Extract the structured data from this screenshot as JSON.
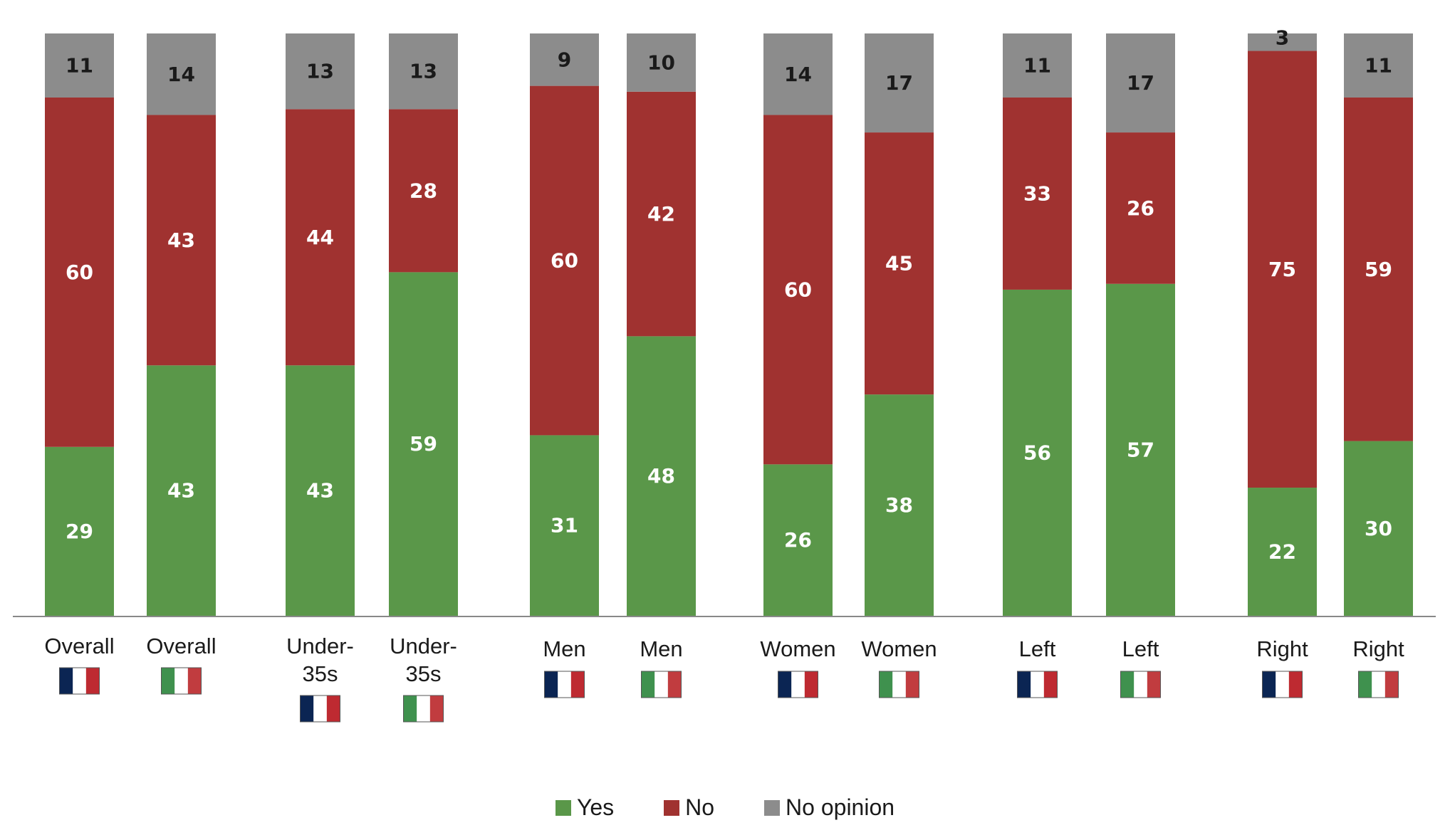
{
  "chart_data": {
    "type": "bar",
    "stacked": true,
    "categories": [
      "Overall",
      "Overall",
      "Under-35s",
      "Under-35s",
      "Men",
      "Men",
      "Women",
      "Women",
      "Left",
      "Left",
      "Right",
      "Right"
    ],
    "countries": [
      "France",
      "Italy",
      "France",
      "Italy",
      "France",
      "Italy",
      "France",
      "Italy",
      "France",
      "Italy",
      "France",
      "Italy"
    ],
    "series": [
      {
        "name": "Yes",
        "color": "#5a9749",
        "values": [
          29,
          43,
          43,
          59,
          31,
          48,
          26,
          38,
          56,
          57,
          22,
          30
        ]
      },
      {
        "name": "No",
        "color": "#a03230",
        "values": [
          60,
          43,
          44,
          28,
          60,
          42,
          60,
          45,
          33,
          26,
          75,
          59
        ]
      },
      {
        "name": "No opinion",
        "color": "#8c8c8c",
        "values": [
          11,
          14,
          13,
          13,
          9,
          10,
          14,
          17,
          11,
          17,
          3,
          11
        ]
      }
    ],
    "ylim": [
      0,
      100
    ],
    "legend_position": "bottom",
    "grid": false
  },
  "legend": {
    "items": [
      "Yes",
      "No",
      "No opinion"
    ]
  }
}
